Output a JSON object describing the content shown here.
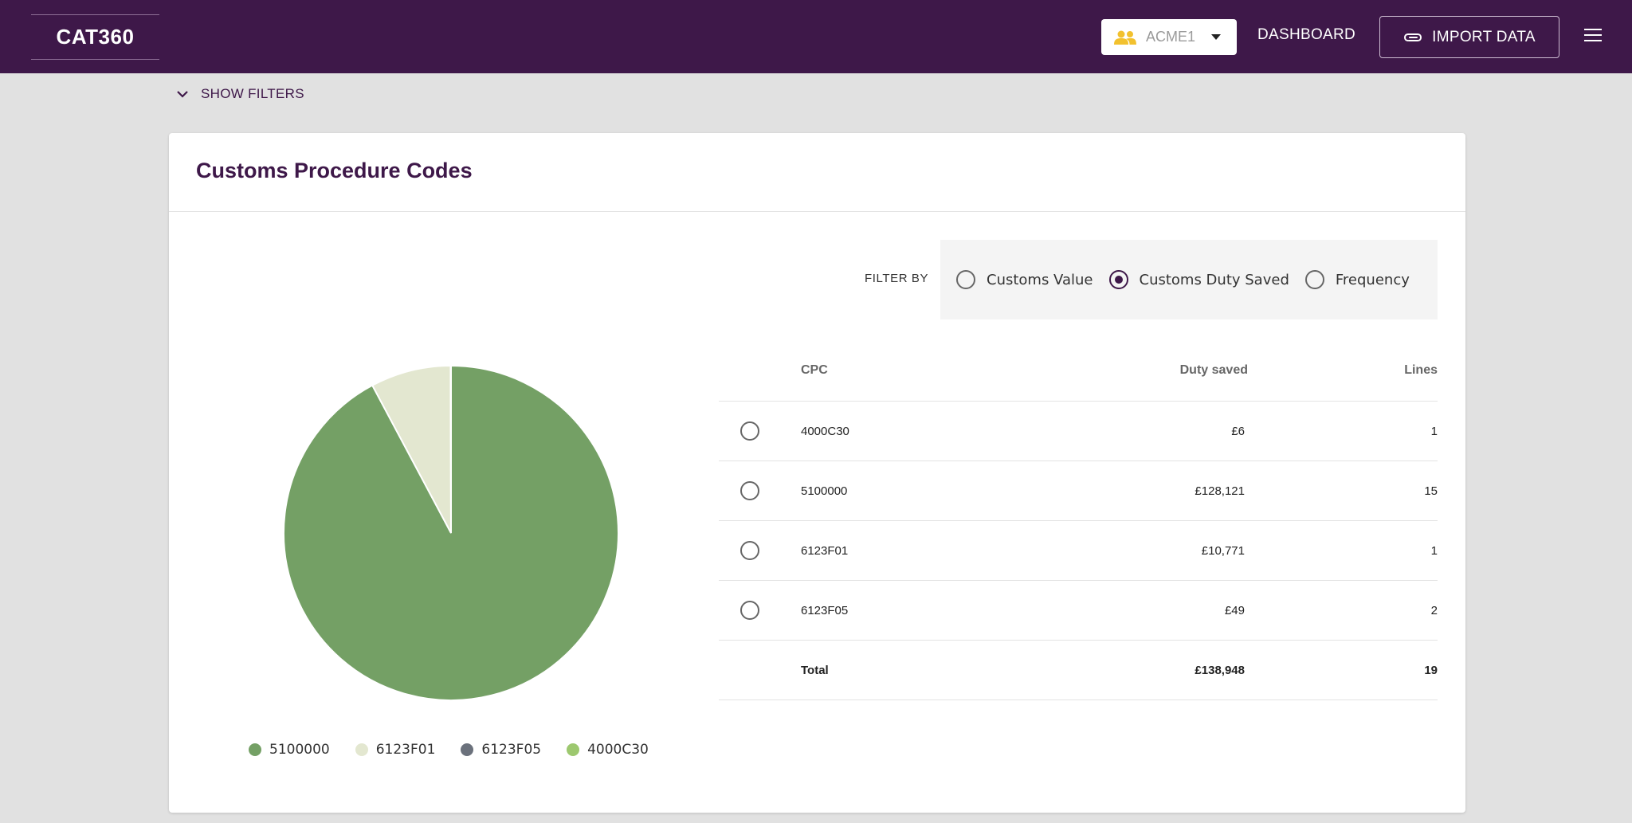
{
  "header": {
    "brand": "CAT360",
    "org_selector": {
      "selected": "ACME1"
    },
    "nav_dashboard": "DASHBOARD",
    "import_button": "IMPORT DATA"
  },
  "filters_toggle": "SHOW FILTERS",
  "card": {
    "title": "Customs Procedure Codes",
    "filter_by_label": "FILTER BY",
    "filter_options": [
      {
        "label": "Customs Value",
        "checked": false
      },
      {
        "label": "Customs Duty Saved",
        "checked": true
      },
      {
        "label": "Frequency",
        "checked": false
      }
    ],
    "table": {
      "columns": [
        "CPC",
        "Duty saved",
        "Lines"
      ],
      "rows": [
        {
          "cpc": "4000C30",
          "duty": "£6",
          "lines": "1"
        },
        {
          "cpc": "5100000",
          "duty": "£128,121",
          "lines": "15"
        },
        {
          "cpc": "6123F01",
          "duty": "£10,771",
          "lines": "1"
        },
        {
          "cpc": "6123F05",
          "duty": "£49",
          "lines": "2"
        }
      ],
      "total": {
        "label": "Total",
        "duty": "£138,948",
        "lines": "19"
      }
    }
  },
  "chart_data": {
    "type": "pie",
    "title": "",
    "categories": [
      "5100000",
      "6123F01",
      "6123F05",
      "4000C30"
    ],
    "values": [
      128121,
      10771,
      49,
      6
    ],
    "colors": [
      "#74a065",
      "#e3e7d0",
      "#6b717c",
      "#9dc86f"
    ],
    "legend_placement": "bottom"
  },
  "colors": {
    "brand_purple": "#3e1849",
    "background": "#e1e1e1",
    "org_icon": "#f2c12e"
  },
  "icons": [
    "people-icon",
    "caret-down-icon",
    "paperclip-icon",
    "menu-icon",
    "chevron-down-icon"
  ]
}
